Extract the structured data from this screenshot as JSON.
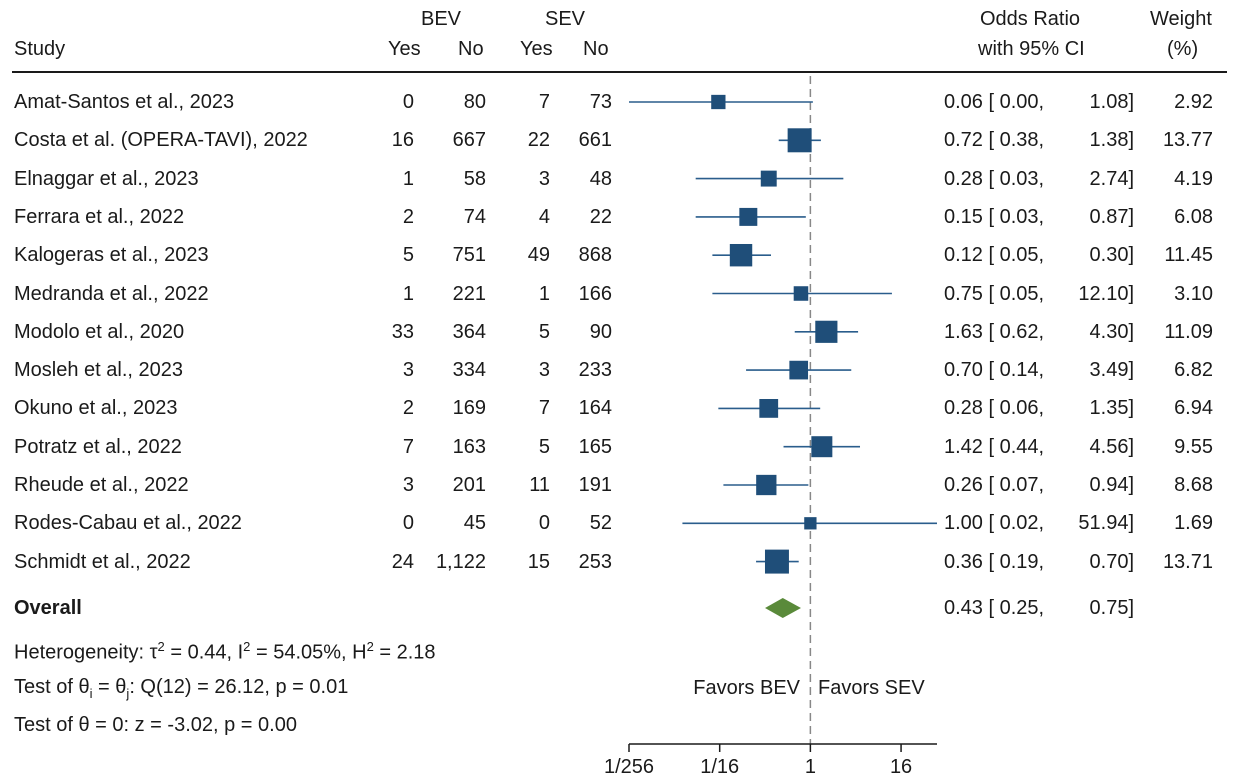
{
  "header": {
    "study": "Study",
    "bev": "BEV",
    "sev": "SEV",
    "yes": "Yes",
    "no": "No",
    "or_line1": "Odds Ratio",
    "or_line2": "with 95% CI",
    "weight_line1": "Weight",
    "weight_line2": "(%)"
  },
  "rows": [
    {
      "study": "Amat-Santos et al., 2023",
      "bev_yes": "0",
      "bev_no": "80",
      "sev_yes": "7",
      "sev_no": "73",
      "or_text": "0.06 [ 0.00,",
      "hi_text": "1.08]",
      "weight": "2.92"
    },
    {
      "study": "Costa et al. (OPERA-TAVI), 2022",
      "bev_yes": "16",
      "bev_no": "667",
      "sev_yes": "22",
      "sev_no": "661",
      "or_text": "0.72 [ 0.38,",
      "hi_text": "1.38]",
      "weight": "13.77"
    },
    {
      "study": "Elnaggar et al., 2023",
      "bev_yes": "1",
      "bev_no": "58",
      "sev_yes": "3",
      "sev_no": "48",
      "or_text": "0.28 [ 0.03,",
      "hi_text": "2.74]",
      "weight": "4.19"
    },
    {
      "study": "Ferrara et al., 2022",
      "bev_yes": "2",
      "bev_no": "74",
      "sev_yes": "4",
      "sev_no": "22",
      "or_text": "0.15 [ 0.03,",
      "hi_text": "0.87]",
      "weight": "6.08"
    },
    {
      "study": "Kalogeras et al., 2023",
      "bev_yes": "5",
      "bev_no": "751",
      "sev_yes": "49",
      "sev_no": "868",
      "or_text": "0.12 [ 0.05,",
      "hi_text": "0.30]",
      "weight": "11.45"
    },
    {
      "study": "Medranda et al., 2022",
      "bev_yes": "1",
      "bev_no": "221",
      "sev_yes": "1",
      "sev_no": "166",
      "or_text": "0.75 [ 0.05,",
      "hi_text": "12.10]",
      "weight": "3.10"
    },
    {
      "study": "Modolo et al., 2020",
      "bev_yes": "33",
      "bev_no": "364",
      "sev_yes": "5",
      "sev_no": "90",
      "or_text": "1.63 [ 0.62,",
      "hi_text": "4.30]",
      "weight": "11.09"
    },
    {
      "study": "Mosleh et al., 2023",
      "bev_yes": "3",
      "bev_no": "334",
      "sev_yes": "3",
      "sev_no": "233",
      "or_text": "0.70 [ 0.14,",
      "hi_text": "3.49]",
      "weight": "6.82"
    },
    {
      "study": "Okuno et al., 2023",
      "bev_yes": "2",
      "bev_no": "169",
      "sev_yes": "7",
      "sev_no": "164",
      "or_text": "0.28 [ 0.06,",
      "hi_text": "1.35]",
      "weight": "6.94"
    },
    {
      "study": "Potratz et al., 2022",
      "bev_yes": "7",
      "bev_no": "163",
      "sev_yes": "5",
      "sev_no": "165",
      "or_text": "1.42 [ 0.44,",
      "hi_text": "4.56]",
      "weight": "9.55"
    },
    {
      "study": "Rheude et al., 2022",
      "bev_yes": "3",
      "bev_no": "201",
      "sev_yes": "11",
      "sev_no": "191",
      "or_text": "0.26 [ 0.07,",
      "hi_text": "0.94]",
      "weight": "8.68"
    },
    {
      "study": "Rodes-Cabau et al., 2022",
      "bev_yes": "0",
      "bev_no": "45",
      "sev_yes": "0",
      "sev_no": "52",
      "or_text": "1.00 [ 0.02,",
      "hi_text": "51.94]",
      "weight": "1.69"
    },
    {
      "study": "Schmidt et al., 2022",
      "bev_yes": "24",
      "bev_no": "1,122",
      "sev_yes": "15",
      "sev_no": "253",
      "or_text": "0.36 [ 0.19,",
      "hi_text": "0.70]",
      "weight": "13.71"
    }
  ],
  "overall": {
    "label": "Overall",
    "or_text": "0.43 [ 0.25,",
    "hi_text": "0.75]"
  },
  "stats": {
    "het_prefix": "Heterogeneity: τ",
    "het_tau_sup": "2",
    "het_mid1": " = 0.44, I",
    "het_i_sup": "2",
    "het_mid2": " = 54.05%, H",
    "het_h_sup": "2",
    "het_end": " = 2.18",
    "test1_a": "Test of θ",
    "test1_i": "i",
    "test1_b": " = θ",
    "test1_j": "j",
    "test1_c": ": Q(12) = 26.12, p = 0.01",
    "test2": "Test of θ = 0: z = -3.02, p = 0.00"
  },
  "annotations": {
    "favors_bev": "Favors BEV",
    "favors_sev": "Favors SEV"
  },
  "colors": {
    "marker": "#1f4e79",
    "ci_line": "#2a5d8c",
    "diamond": "#5a8a3a",
    "axis": "#1a1a1a",
    "ref_line": "#888888"
  },
  "chart_data": {
    "type": "forest",
    "x_scale": "log2",
    "xlim": [
      0.00390625,
      48
    ],
    "ticks": [
      {
        "value": 0.00390625,
        "label": "1/256"
      },
      {
        "value": 0.0625,
        "label": "1/16"
      },
      {
        "value": 1,
        "label": "1"
      },
      {
        "value": 16,
        "label": "16"
      }
    ],
    "reference": 1,
    "studies": [
      {
        "or": 0.06,
        "lo": 0.0,
        "hi": 1.08,
        "weight": 2.92
      },
      {
        "or": 0.72,
        "lo": 0.38,
        "hi": 1.38,
        "weight": 13.77
      },
      {
        "or": 0.28,
        "lo": 0.03,
        "hi": 2.74,
        "weight": 4.19
      },
      {
        "or": 0.15,
        "lo": 0.03,
        "hi": 0.87,
        "weight": 6.08
      },
      {
        "or": 0.12,
        "lo": 0.05,
        "hi": 0.3,
        "weight": 11.45
      },
      {
        "or": 0.75,
        "lo": 0.05,
        "hi": 12.1,
        "weight": 3.1
      },
      {
        "or": 1.63,
        "lo": 0.62,
        "hi": 4.3,
        "weight": 11.09
      },
      {
        "or": 0.7,
        "lo": 0.14,
        "hi": 3.49,
        "weight": 6.82
      },
      {
        "or": 0.28,
        "lo": 0.06,
        "hi": 1.35,
        "weight": 6.94
      },
      {
        "or": 1.42,
        "lo": 0.44,
        "hi": 4.56,
        "weight": 9.55
      },
      {
        "or": 0.26,
        "lo": 0.07,
        "hi": 0.94,
        "weight": 8.68
      },
      {
        "or": 1.0,
        "lo": 0.02,
        "hi": 51.94,
        "weight": 1.69
      },
      {
        "or": 0.36,
        "lo": 0.19,
        "hi": 0.7,
        "weight": 13.71
      }
    ],
    "overall": {
      "or": 0.43,
      "lo": 0.25,
      "hi": 0.75
    }
  }
}
